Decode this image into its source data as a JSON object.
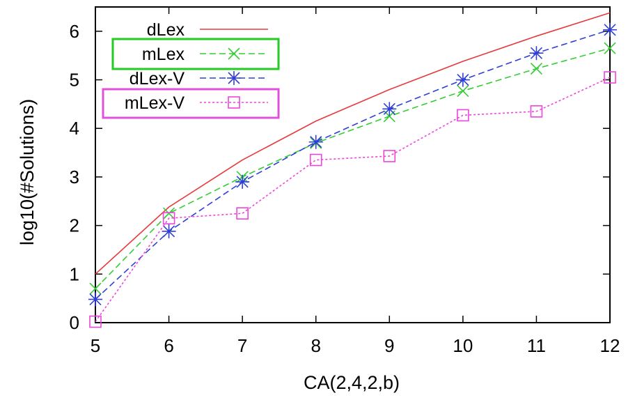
{
  "chart_data": {
    "type": "line",
    "title": "",
    "xlabel": "CA(2,4,2,b)",
    "ylabel": "log10(#Solutions)",
    "x": [
      5,
      6,
      7,
      8,
      9,
      10,
      11,
      12
    ],
    "xlim": [
      5,
      12
    ],
    "ylim": [
      0,
      6.5
    ],
    "xticks": [
      "5",
      "6",
      "7",
      "8",
      "9",
      "10",
      "11",
      "12"
    ],
    "yticks": [
      "0",
      "1",
      "2",
      "3",
      "4",
      "5",
      "6"
    ],
    "grid": false,
    "legend_position": "top-left",
    "series": [
      {
        "name": "dLex",
        "color": "#e8393a",
        "style": "solid",
        "marker": "none",
        "values": [
          1.0,
          2.38,
          3.35,
          4.15,
          4.8,
          5.38,
          5.9,
          6.38
        ]
      },
      {
        "name": "mLex",
        "color": "#33cc33",
        "style": "dashed",
        "marker": "x",
        "values": [
          0.7,
          2.25,
          3.0,
          3.7,
          4.25,
          4.77,
          5.23,
          5.65
        ]
      },
      {
        "name": "dLex-V",
        "color": "#2f3fd6",
        "style": "dashed",
        "marker": "star",
        "values": [
          0.48,
          1.88,
          2.9,
          3.72,
          4.4,
          5.0,
          5.55,
          6.03
        ]
      },
      {
        "name": "mLex-V",
        "color": "#ee44dd",
        "style": "dotted",
        "marker": "square",
        "values": [
          0.02,
          2.15,
          2.25,
          3.35,
          3.43,
          4.27,
          4.35,
          5.05
        ]
      }
    ],
    "legend_highlight_colors": {
      "mLex": "#22cc22",
      "mLex-V": "#e050d8"
    }
  }
}
